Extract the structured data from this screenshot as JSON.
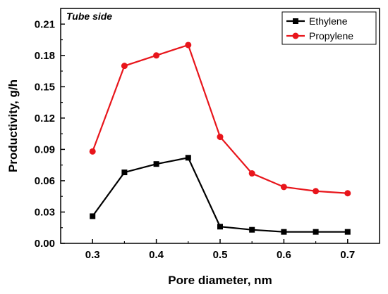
{
  "chart_data": {
    "type": "line",
    "annotation": "Tube side",
    "xlabel": "Pore diameter, nm",
    "ylabel": "Productivity, g/h",
    "xlim": [
      0.25,
      0.75
    ],
    "ylim": [
      0.0,
      0.225
    ],
    "xticks": [
      0.3,
      0.4,
      0.5,
      0.6,
      0.7
    ],
    "xtick_labels": [
      "0.3",
      "0.4",
      "0.5",
      "0.6",
      "0.7"
    ],
    "yticks": [
      0.0,
      0.03,
      0.06,
      0.09,
      0.12,
      0.15,
      0.18,
      0.21
    ],
    "ytick_labels": [
      "0.00",
      "0.03",
      "0.06",
      "0.09",
      "0.12",
      "0.15",
      "0.18",
      "0.21"
    ],
    "legend_position": "top-right",
    "grid": false,
    "x": [
      0.3,
      0.35,
      0.4,
      0.45,
      0.5,
      0.55,
      0.6,
      0.65,
      0.7
    ],
    "series": [
      {
        "name": "Ethylene",
        "color": "#000000",
        "marker": "square",
        "values": [
          0.026,
          0.068,
          0.076,
          0.082,
          0.016,
          0.013,
          0.011,
          0.011,
          0.011
        ]
      },
      {
        "name": "Propylene",
        "color": "#e8151b",
        "marker": "circle",
        "values": [
          0.088,
          0.17,
          0.18,
          0.19,
          0.102,
          0.067,
          0.054,
          0.05,
          0.048
        ]
      }
    ]
  }
}
